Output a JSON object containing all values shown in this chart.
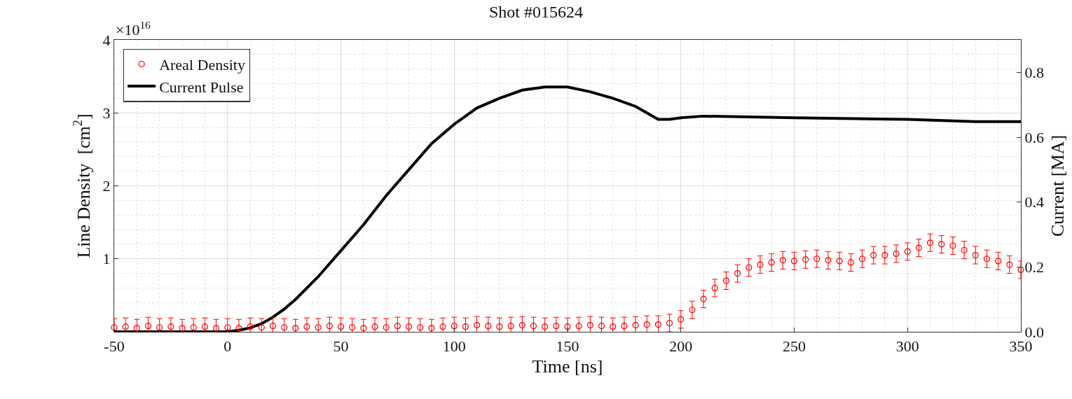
{
  "chart_data": {
    "type": "line",
    "title": "Shot #015624",
    "xlabel": "Time [ns]",
    "ylabel": "Line Density  [cm$^{2}$]",
    "y2label": "Current [MA]",
    "annotations": [
      "×10$^{16}$"
    ],
    "xlim": [
      -50,
      350
    ],
    "xticks": [
      -50,
      0,
      50,
      100,
      150,
      200,
      250,
      300,
      350
    ],
    "ylim": [
      0,
      4
    ],
    "yticks": [
      {
        "value": 0,
        "label": null
      },
      1,
      2,
      3,
      4
    ],
    "y2lim": [
      0,
      0.9
    ],
    "y2ticks": [
      {
        "value": 0,
        "label": "0.0"
      },
      0.2,
      0.4,
      0.6,
      0.8
    ],
    "grid": true,
    "legend": "top left",
    "series": [
      {
        "name": "Areal Density",
        "type": "scatter",
        "marker": "circle",
        "color": "#ff0000",
        "x": [
          -50,
          -45,
          -40,
          -35,
          -30,
          -25,
          -20,
          -15,
          -10,
          -5,
          0,
          5,
          10,
          15,
          20,
          25,
          30,
          35,
          40,
          45,
          50,
          55,
          60,
          65,
          70,
          75,
          80,
          85,
          90,
          95,
          100,
          105,
          110,
          115,
          120,
          125,
          130,
          135,
          140,
          145,
          150,
          155,
          160,
          165,
          170,
          175,
          180,
          185,
          190,
          195,
          200,
          205,
          210,
          215,
          220,
          225,
          230,
          235,
          240,
          245,
          250,
          255,
          260,
          265,
          270,
          275,
          280,
          285,
          290,
          295,
          300,
          305,
          310,
          315,
          320,
          325,
          330,
          335,
          340,
          345,
          350
        ],
        "values": [
          0.06,
          0.07,
          0.05,
          0.08,
          0.06,
          0.07,
          0.05,
          0.06,
          0.07,
          0.05,
          0.06,
          0.05,
          0.07,
          0.06,
          0.08,
          0.06,
          0.05,
          0.07,
          0.06,
          0.08,
          0.07,
          0.06,
          0.05,
          0.07,
          0.06,
          0.08,
          0.07,
          0.06,
          0.05,
          0.07,
          0.08,
          0.07,
          0.09,
          0.08,
          0.07,
          0.08,
          0.09,
          0.08,
          0.07,
          0.08,
          0.07,
          0.08,
          0.09,
          0.08,
          0.07,
          0.08,
          0.09,
          0.1,
          0.1,
          0.12,
          0.17,
          0.3,
          0.45,
          0.6,
          0.7,
          0.8,
          0.88,
          0.92,
          0.95,
          0.98,
          0.97,
          0.99,
          1.0,
          0.98,
          0.97,
          0.95,
          1.0,
          1.05,
          1.05,
          1.07,
          1.1,
          1.15,
          1.22,
          1.2,
          1.18,
          1.12,
          1.05,
          1.0,
          0.97,
          0.92,
          0.85
        ],
        "errors": [
          0.12,
          0.12,
          0.12,
          0.12,
          0.12,
          0.12,
          0.12,
          0.12,
          0.12,
          0.12,
          0.12,
          0.12,
          0.12,
          0.12,
          0.12,
          0.12,
          0.12,
          0.12,
          0.12,
          0.12,
          0.12,
          0.12,
          0.12,
          0.12,
          0.12,
          0.12,
          0.12,
          0.12,
          0.12,
          0.12,
          0.12,
          0.12,
          0.12,
          0.12,
          0.12,
          0.12,
          0.12,
          0.12,
          0.12,
          0.12,
          0.12,
          0.12,
          0.12,
          0.12,
          0.12,
          0.12,
          0.12,
          0.12,
          0.12,
          0.12,
          0.12,
          0.12,
          0.12,
          0.12,
          0.12,
          0.12,
          0.12,
          0.12,
          0.12,
          0.12,
          0.12,
          0.12,
          0.12,
          0.12,
          0.12,
          0.12,
          0.12,
          0.12,
          0.12,
          0.12,
          0.12,
          0.12,
          0.12,
          0.12,
          0.12,
          0.12,
          0.12,
          0.12,
          0.12,
          0.12,
          0.12
        ]
      },
      {
        "name": "Current Pulse",
        "type": "line",
        "axis": "y2",
        "color": "#000000",
        "marker": "none",
        "x": [
          -50,
          -20,
          0,
          5,
          10,
          15,
          20,
          25,
          30,
          40,
          50,
          60,
          70,
          80,
          90,
          100,
          110,
          120,
          130,
          140,
          150,
          160,
          170,
          180,
          185,
          190,
          195,
          200,
          210,
          250,
          300,
          330,
          350
        ],
        "values": [
          0.0,
          0.0,
          0.0,
          0.005,
          0.012,
          0.025,
          0.045,
          0.07,
          0.1,
          0.17,
          0.25,
          0.33,
          0.42,
          0.5,
          0.58,
          0.64,
          0.69,
          0.72,
          0.745,
          0.755,
          0.755,
          0.74,
          0.72,
          0.695,
          0.675,
          0.655,
          0.655,
          0.66,
          0.665,
          0.66,
          0.655,
          0.648,
          0.648
        ]
      }
    ]
  }
}
